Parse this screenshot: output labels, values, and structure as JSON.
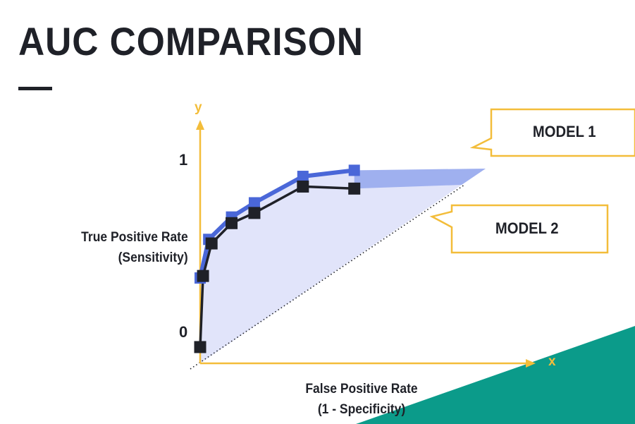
{
  "title": "AUC COMPARISON",
  "callouts": {
    "model1": "MODEL 1",
    "model2": "MODEL 2"
  },
  "colors": {
    "axis": "#f3bd3a",
    "model1": "#4a67d8",
    "model2": "#1f2128",
    "area": "#dfe3fa",
    "teal": "#0b9b8a"
  },
  "chart_data": {
    "type": "line",
    "title": "",
    "xlabel_line1": "False Positive Rate",
    "xlabel_line2": "(1 - Specificity)",
    "ylabel_line1": "True Positive Rate",
    "ylabel_line2": "(Sensitivity)",
    "x_axis_letter": "x",
    "y_axis_letter": "y",
    "y_tick_labels": [
      "0",
      "1"
    ],
    "xlim": [
      0,
      1
    ],
    "ylim": [
      0,
      1
    ],
    "grid": false,
    "series": [
      {
        "name": "MODEL 1",
        "x": [
          0.0,
          0.03,
          0.11,
          0.19,
          0.36,
          0.54
        ],
        "y": [
          0.42,
          0.61,
          0.72,
          0.79,
          0.92,
          0.95
        ]
      },
      {
        "name": "MODEL 2",
        "x": [
          0.0,
          0.01,
          0.04,
          0.11,
          0.19,
          0.36,
          0.54
        ],
        "y": [
          0.08,
          0.43,
          0.59,
          0.69,
          0.74,
          0.87,
          0.86
        ]
      }
    ],
    "baseline": {
      "x": [
        0,
        1
      ],
      "y": [
        0,
        1
      ]
    }
  }
}
